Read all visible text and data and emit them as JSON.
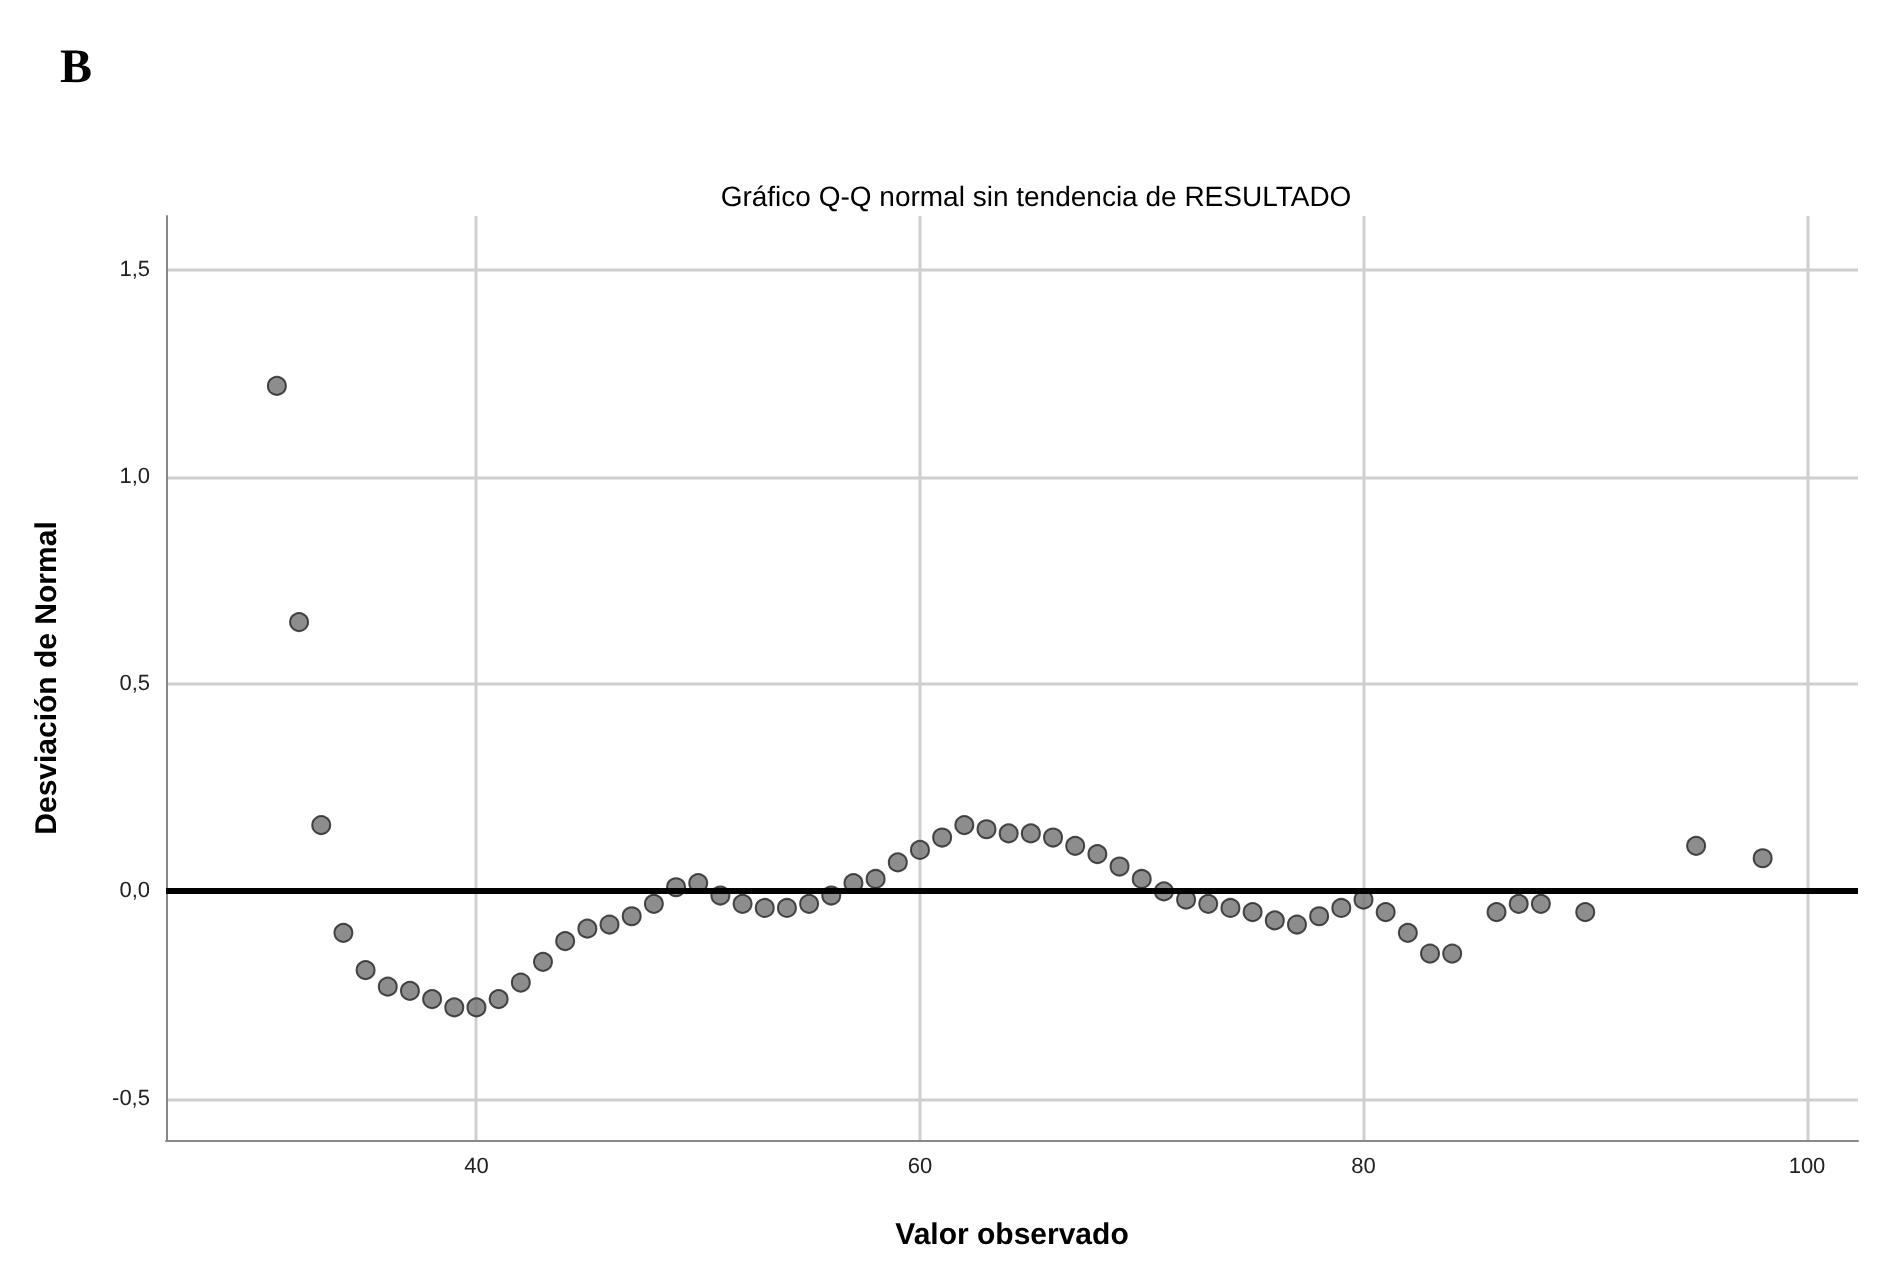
{
  "chart_data": {
    "type": "scatter",
    "title": "Gráfico Q-Q normal sin tendencia de RESULTADO",
    "xlabel": "Valor observado",
    "ylabel": "Desviación de Normal",
    "annotations": [
      "B"
    ],
    "x": [
      31,
      32,
      33,
      34,
      35,
      36,
      37,
      38,
      39,
      40,
      41,
      42,
      43,
      44,
      45,
      46,
      47,
      48,
      49,
      50,
      51,
      52,
      53,
      54,
      55,
      56,
      57,
      58,
      59,
      60,
      61,
      62,
      63,
      64,
      65,
      66,
      67,
      68,
      69,
      70,
      71,
      72,
      73,
      74,
      75,
      76,
      77,
      78,
      79,
      80,
      81,
      82,
      83,
      84,
      86,
      87,
      88,
      90,
      95,
      98
    ],
    "series": [
      {
        "color": "#707070",
        "values": [
          1.22,
          0.65,
          0.16,
          -0.1,
          -0.19,
          -0.23,
          -0.24,
          -0.26,
          -0.28,
          -0.28,
          -0.26,
          -0.22,
          -0.17,
          -0.12,
          -0.09,
          -0.08,
          -0.06,
          -0.03,
          0.01,
          0.02,
          -0.01,
          -0.03,
          -0.04,
          -0.04,
          -0.03,
          -0.01,
          0.02,
          0.03,
          0.07,
          0.1,
          0.13,
          0.16,
          0.15,
          0.14,
          0.14,
          0.13,
          0.11,
          0.09,
          0.06,
          0.03,
          0.0,
          -0.02,
          -0.03,
          -0.04,
          -0.05,
          -0.07,
          -0.08,
          -0.06,
          -0.04,
          -0.02,
          -0.05,
          -0.1,
          -0.15,
          -0.15,
          -0.05,
          -0.03,
          -0.03,
          -0.05,
          0.11,
          0.08
        ]
      }
    ],
    "xlim": [
      26,
      102.3
    ],
    "xticks": [
      40,
      60,
      80,
      100
    ],
    "ylim": [
      -0.6,
      1.63
    ],
    "yticks": [
      {
        "value": -0.5,
        "label": "-0,5"
      },
      {
        "value": 0,
        "label": "0,0"
      },
      {
        "value": 0.5,
        "label": "0,5"
      },
      {
        "value": 1,
        "label": "1,0"
      },
      {
        "value": 1.5,
        "label": "1,5"
      }
    ],
    "ref_lines": [
      {
        "axis": "y",
        "value": 0,
        "color": "#000000"
      }
    ],
    "grid": true,
    "marker": "circle"
  }
}
